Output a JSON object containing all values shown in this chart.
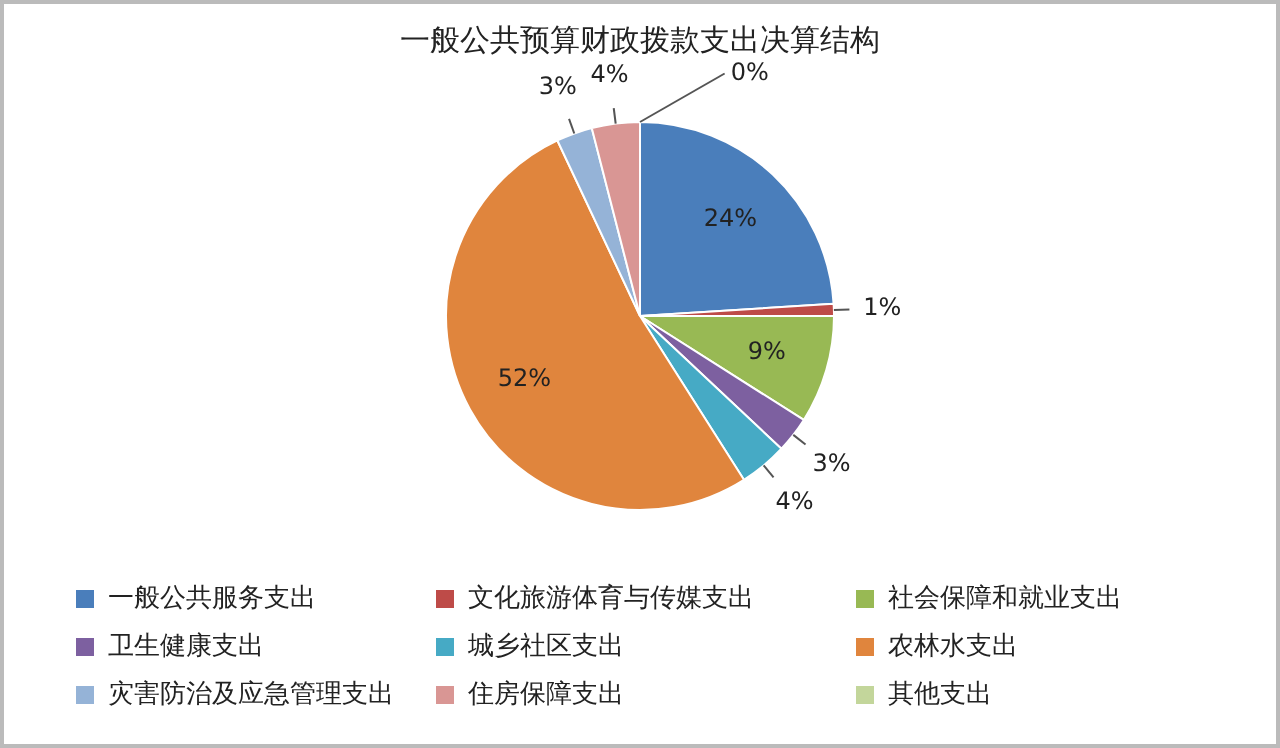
{
  "chart_data": {
    "type": "pie",
    "title": "一般公共预算财政拨款支出决算结构",
    "categories": [
      "一般公共服务支出",
      "文化旅游体育与传媒支出",
      "社会保障和就业支出",
      "卫生健康支出",
      "城乡社区支出",
      "农林水支出",
      "灾害防治及应急管理支出",
      "住房保障支出",
      "其他支出"
    ],
    "values": [
      24,
      1,
      9,
      3,
      4,
      52,
      3,
      4,
      0
    ],
    "value_labels": [
      "24%",
      "1%",
      "9%",
      "3%",
      "4%",
      "52%",
      "3%",
      "4%",
      "0%"
    ],
    "colors": [
      "#4a7ebb",
      "#be4b48",
      "#98b954",
      "#7d60a0",
      "#46aac5",
      "#e0853d",
      "#95b3d7",
      "#d99694",
      "#c3d69b"
    ],
    "legend": "bottom"
  }
}
